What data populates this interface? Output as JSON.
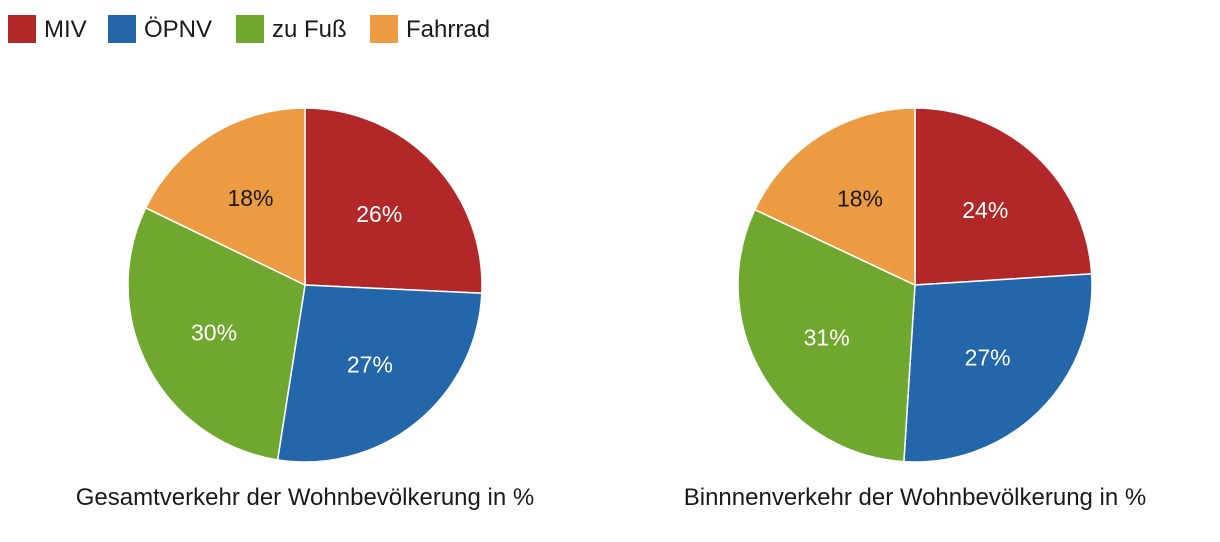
{
  "chart_data": [
    {
      "type": "pie",
      "title": "Gesamtverkehr der Wohnbevölkerung in %",
      "categories": [
        "MIV",
        "ÖPNV",
        "zu Fuß",
        "Fahrrad"
      ],
      "values": [
        26,
        27,
        30,
        18
      ],
      "labels": [
        "26%",
        "27%",
        "30%",
        "18%"
      ],
      "legend": "top-left"
    },
    {
      "type": "pie",
      "title": "Binnnenverkehr der Wohnbevölkerung in %",
      "categories": [
        "MIV",
        "ÖPNV",
        "zu Fuß",
        "Fahrrad"
      ],
      "values": [
        24,
        27,
        31,
        18
      ],
      "labels": [
        "24%",
        "27%",
        "31%",
        "18%"
      ],
      "legend": "top-left"
    }
  ],
  "legend": {
    "items": [
      {
        "label": "MIV",
        "color": "#b22727"
      },
      {
        "label": "ÖPNV",
        "color": "#2366a9"
      },
      {
        "label": "zu Fuß",
        "color": "#6fa72f"
      },
      {
        "label": "Fahrrad",
        "color": "#ec9b43"
      }
    ]
  },
  "label_colors": [
    "#ffffff",
    "#ffffff",
    "#ffffff",
    "#1a1a1a"
  ]
}
